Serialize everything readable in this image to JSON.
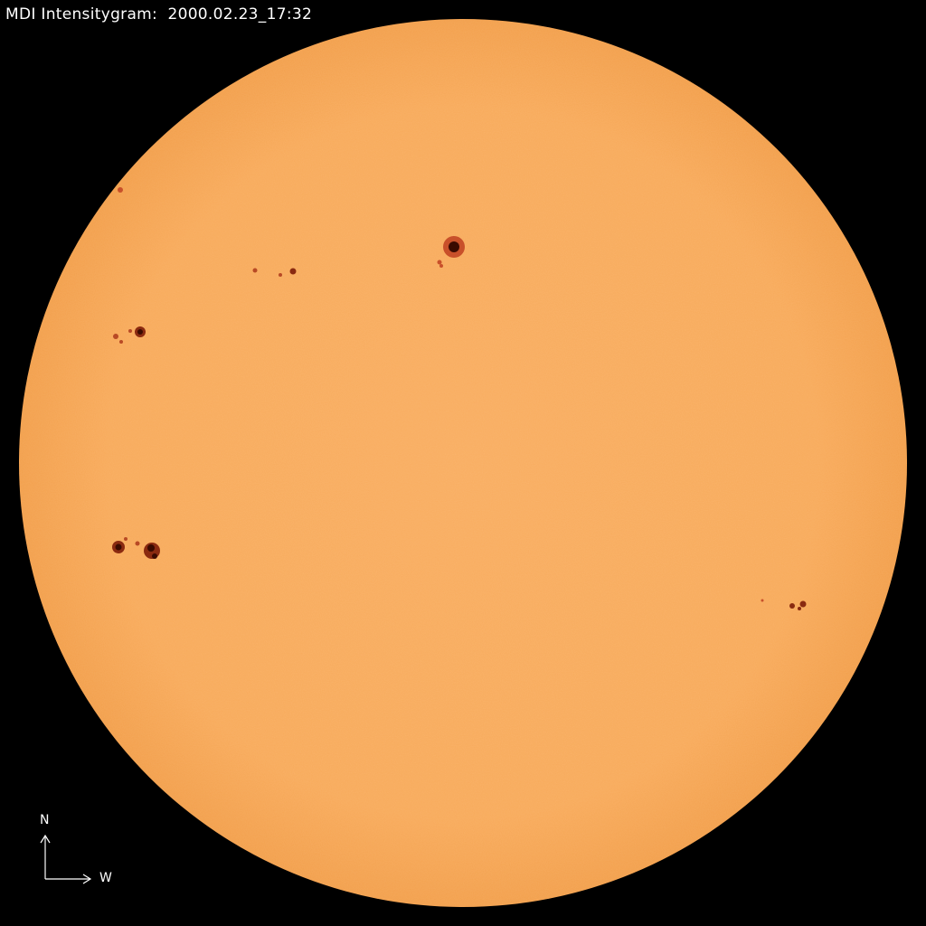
{
  "title": "MDI Intensitygram:  2000.02.23_17:32",
  "compass": {
    "north": "N",
    "west": "W"
  },
  "colors": {
    "background": "#000000",
    "disk": "#f8ab5c",
    "limb": "#f3a04c",
    "umbra": "#3a0a00",
    "penumbra": "#c8502a"
  }
}
